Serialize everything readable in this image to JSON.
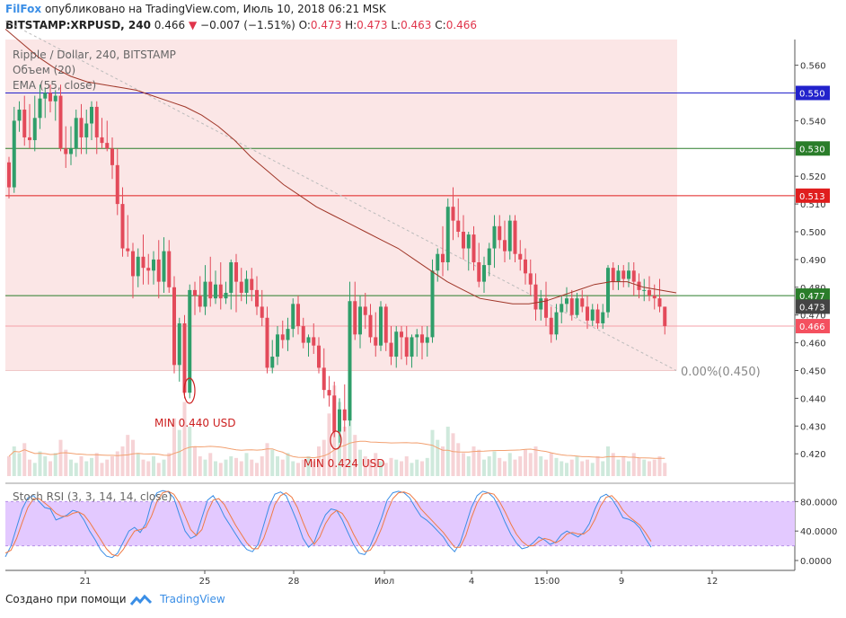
{
  "header": {
    "brand": "FilFox",
    "published": "опубликовано на TradingView.com, Июль 10, 2018 06:21 MSK",
    "symbol": "BITSTAMP:XRPUSD, 240",
    "last": "0.466",
    "arrow": "▼",
    "change": "−0.007 (−1.51%)",
    "o_label": "O:",
    "o_val": "0.473",
    "h_label": "H:",
    "h_val": "0.473",
    "l_label": "L:",
    "l_val": "0.463",
    "c_label": "C:",
    "c_val": "0.466"
  },
  "footer": {
    "created": "Создано при помощи",
    "brand": "TradingView"
  },
  "colors": {
    "up": "#2f9e6a",
    "down": "#e34a5a",
    "ema": "#a03628",
    "zone": "#fbe6e6",
    "stoch_bg": "#e3c9ff",
    "k": "#3b8ee6",
    "d": "#f07a44"
  },
  "chart_data": [
    {
      "type": "candlestick",
      "title": "Ripple / Dollar, 240, BITSTAMP",
      "legend": [
        "Объем (20)",
        "EMA (55, close)"
      ],
      "x_ticks": [
        "21",
        "25",
        "28",
        "Июл",
        "4",
        "15:00",
        "9",
        "12"
      ],
      "y_ticks": [
        "0.560",
        "0.550",
        "0.540",
        "0.530",
        "0.520",
        "0.510",
        "0.500",
        "0.490",
        "0.480",
        "0.470",
        "0.460",
        "0.450",
        "0.440",
        "0.430",
        "0.420"
      ],
      "ylim": [
        0.41,
        0.57
      ],
      "levels": [
        {
          "value": 0.55,
          "label": "0.550",
          "color": "#2222cc"
        },
        {
          "value": 0.53,
          "label": "0.530",
          "color": "#2a7d2a"
        },
        {
          "value": 0.513,
          "label": "0.513",
          "color": "#e01e1e"
        },
        {
          "value": 0.477,
          "label": "0.477",
          "color": "#2a7d2a"
        }
      ],
      "last_price": {
        "value": 0.466,
        "label": "0.466"
      },
      "ema_value": {
        "value": 0.473,
        "label": "0.473"
      },
      "fib_label": "0.00%(0.450)",
      "annotations": [
        "MIN 0.440 USD",
        "MIN 0.424 USD"
      ],
      "ohlc": [
        [
          0.525,
          0.527,
          0.512,
          0.516
        ],
        [
          0.516,
          0.545,
          0.514,
          0.54
        ],
        [
          0.54,
          0.547,
          0.536,
          0.544
        ],
        [
          0.544,
          0.549,
          0.531,
          0.534
        ],
        [
          0.534,
          0.546,
          0.53,
          0.533
        ],
        [
          0.533,
          0.549,
          0.529,
          0.541
        ],
        [
          0.541,
          0.553,
          0.537,
          0.548
        ],
        [
          0.548,
          0.552,
          0.541,
          0.55
        ],
        [
          0.55,
          0.553,
          0.543,
          0.547
        ],
        [
          0.547,
          0.551,
          0.54,
          0.549
        ],
        [
          0.549,
          0.553,
          0.529,
          0.53
        ],
        [
          0.53,
          0.538,
          0.523,
          0.528
        ],
        [
          0.528,
          0.538,
          0.524,
          0.53
        ],
        [
          0.53,
          0.544,
          0.527,
          0.541
        ],
        [
          0.541,
          0.546,
          0.528,
          0.534
        ],
        [
          0.534,
          0.544,
          0.528,
          0.539
        ],
        [
          0.539,
          0.547,
          0.533,
          0.545
        ],
        [
          0.545,
          0.547,
          0.528,
          0.534
        ],
        [
          0.534,
          0.541,
          0.53,
          0.532
        ],
        [
          0.532,
          0.54,
          0.529,
          0.53
        ],
        [
          0.53,
          0.534,
          0.519,
          0.524
        ],
        [
          0.524,
          0.53,
          0.506,
          0.51
        ],
        [
          0.51,
          0.516,
          0.491,
          0.494
        ],
        [
          0.494,
          0.506,
          0.491,
          0.493
        ],
        [
          0.493,
          0.496,
          0.476,
          0.484
        ],
        [
          0.484,
          0.494,
          0.48,
          0.491
        ],
        [
          0.491,
          0.499,
          0.481,
          0.487
        ],
        [
          0.487,
          0.492,
          0.481,
          0.486
        ],
        [
          0.486,
          0.493,
          0.481,
          0.49
        ],
        [
          0.49,
          0.497,
          0.476,
          0.482
        ],
        [
          0.482,
          0.498,
          0.478,
          0.493
        ],
        [
          0.493,
          0.497,
          0.478,
          0.48
        ],
        [
          0.48,
          0.484,
          0.449,
          0.452
        ],
        [
          0.452,
          0.469,
          0.446,
          0.467
        ],
        [
          0.467,
          0.47,
          0.44,
          0.442
        ],
        [
          0.442,
          0.481,
          0.44,
          0.479
        ],
        [
          0.479,
          0.482,
          0.47,
          0.477
        ],
        [
          0.477,
          0.484,
          0.471,
          0.473
        ],
        [
          0.473,
          0.488,
          0.47,
          0.482
        ],
        [
          0.482,
          0.491,
          0.473,
          0.476
        ],
        [
          0.476,
          0.486,
          0.474,
          0.481
        ],
        [
          0.481,
          0.489,
          0.472,
          0.476
        ],
        [
          0.476,
          0.482,
          0.474,
          0.478
        ],
        [
          0.478,
          0.49,
          0.472,
          0.489
        ],
        [
          0.489,
          0.492,
          0.471,
          0.482
        ],
        [
          0.482,
          0.487,
          0.475,
          0.478
        ],
        [
          0.478,
          0.486,
          0.474,
          0.483
        ],
        [
          0.483,
          0.487,
          0.475,
          0.479
        ],
        [
          0.479,
          0.484,
          0.47,
          0.473
        ],
        [
          0.473,
          0.479,
          0.466,
          0.469
        ],
        [
          0.469,
          0.473,
          0.449,
          0.451
        ],
        [
          0.451,
          0.461,
          0.449,
          0.455
        ],
        [
          0.455,
          0.466,
          0.452,
          0.463
        ],
        [
          0.463,
          0.468,
          0.458,
          0.461
        ],
        [
          0.461,
          0.469,
          0.457,
          0.465
        ],
        [
          0.465,
          0.476,
          0.462,
          0.474
        ],
        [
          0.474,
          0.477,
          0.463,
          0.466
        ],
        [
          0.466,
          0.469,
          0.458,
          0.46
        ],
        [
          0.46,
          0.463,
          0.455,
          0.462
        ],
        [
          0.462,
          0.467,
          0.456,
          0.459
        ],
        [
          0.459,
          0.462,
          0.449,
          0.451
        ],
        [
          0.451,
          0.458,
          0.44,
          0.443
        ],
        [
          0.443,
          0.448,
          0.437,
          0.441
        ],
        [
          0.441,
          0.446,
          0.426,
          0.428
        ],
        [
          0.428,
          0.44,
          0.424,
          0.436
        ],
        [
          0.436,
          0.445,
          0.428,
          0.432
        ],
        [
          0.432,
          0.482,
          0.43,
          0.475
        ],
        [
          0.475,
          0.482,
          0.461,
          0.463
        ],
        [
          0.463,
          0.477,
          0.458,
          0.473
        ],
        [
          0.473,
          0.478,
          0.465,
          0.47
        ],
        [
          0.47,
          0.474,
          0.46,
          0.462
        ],
        [
          0.462,
          0.471,
          0.455,
          0.459
        ],
        [
          0.459,
          0.475,
          0.457,
          0.473
        ],
        [
          0.473,
          0.474,
          0.457,
          0.46
        ],
        [
          0.46,
          0.466,
          0.452,
          0.455
        ],
        [
          0.455,
          0.466,
          0.451,
          0.464
        ],
        [
          0.464,
          0.466,
          0.454,
          0.462
        ],
        [
          0.462,
          0.466,
          0.452,
          0.455
        ],
        [
          0.455,
          0.463,
          0.451,
          0.462
        ],
        [
          0.462,
          0.465,
          0.455,
          0.463
        ],
        [
          0.463,
          0.466,
          0.454,
          0.46
        ],
        [
          0.46,
          0.466,
          0.455,
          0.462
        ],
        [
          0.462,
          0.49,
          0.46,
          0.486
        ],
        [
          0.486,
          0.494,
          0.482,
          0.492
        ],
        [
          0.492,
          0.502,
          0.484,
          0.489
        ],
        [
          0.489,
          0.512,
          0.486,
          0.509
        ],
        [
          0.509,
          0.516,
          0.497,
          0.504
        ],
        [
          0.504,
          0.512,
          0.498,
          0.5
        ],
        [
          0.5,
          0.506,
          0.49,
          0.494
        ],
        [
          0.494,
          0.5,
          0.486,
          0.499
        ],
        [
          0.499,
          0.502,
          0.486,
          0.489
        ],
        [
          0.489,
          0.496,
          0.48,
          0.482
        ],
        [
          0.482,
          0.491,
          0.478,
          0.488
        ],
        [
          0.488,
          0.496,
          0.484,
          0.494
        ],
        [
          0.494,
          0.506,
          0.487,
          0.502
        ],
        [
          0.502,
          0.506,
          0.494,
          0.497
        ],
        [
          0.497,
          0.504,
          0.489,
          0.493
        ],
        [
          0.493,
          0.506,
          0.49,
          0.504
        ],
        [
          0.504,
          0.506,
          0.489,
          0.492
        ],
        [
          0.492,
          0.497,
          0.486,
          0.49
        ],
        [
          0.49,
          0.494,
          0.481,
          0.485
        ],
        [
          0.485,
          0.49,
          0.477,
          0.481
        ],
        [
          0.481,
          0.485,
          0.468,
          0.472
        ],
        [
          0.472,
          0.479,
          0.468,
          0.476
        ],
        [
          0.476,
          0.482,
          0.466,
          0.469
        ],
        [
          0.469,
          0.473,
          0.46,
          0.463
        ],
        [
          0.463,
          0.474,
          0.461,
          0.471
        ],
        [
          0.471,
          0.477,
          0.467,
          0.474
        ],
        [
          0.474,
          0.48,
          0.471,
          0.476
        ],
        [
          0.476,
          0.479,
          0.468,
          0.47
        ],
        [
          0.47,
          0.478,
          0.469,
          0.476
        ],
        [
          0.476,
          0.479,
          0.471,
          0.473
        ],
        [
          0.473,
          0.477,
          0.465,
          0.468
        ],
        [
          0.468,
          0.474,
          0.466,
          0.472
        ],
        [
          0.472,
          0.474,
          0.465,
          0.467
        ],
        [
          0.467,
          0.474,
          0.465,
          0.471
        ],
        [
          0.471,
          0.488,
          0.469,
          0.487
        ],
        [
          0.487,
          0.489,
          0.479,
          0.482
        ],
        [
          0.482,
          0.488,
          0.479,
          0.486
        ],
        [
          0.486,
          0.488,
          0.48,
          0.483
        ],
        [
          0.483,
          0.489,
          0.48,
          0.486
        ],
        [
          0.486,
          0.489,
          0.477,
          0.482
        ],
        [
          0.482,
          0.485,
          0.476,
          0.479
        ],
        [
          0.479,
          0.483,
          0.475,
          0.479
        ],
        [
          0.479,
          0.484,
          0.475,
          0.477
        ],
        [
          0.477,
          0.481,
          0.472,
          0.476
        ],
        [
          0.476,
          0.483,
          0.471,
          0.473
        ],
        [
          0.473,
          0.473,
          0.463,
          0.466
        ]
      ],
      "ema": [
        0.573,
        0.568,
        0.563,
        0.559,
        0.556,
        0.554,
        0.553,
        0.552,
        0.551,
        0.549,
        0.547,
        0.545,
        0.542,
        0.538,
        0.533,
        0.527,
        0.522,
        0.517,
        0.513,
        0.509,
        0.506,
        0.503,
        0.5,
        0.497,
        0.494,
        0.49,
        0.486,
        0.482,
        0.479,
        0.476,
        0.475,
        0.474,
        0.474,
        0.475,
        0.477,
        0.479,
        0.481,
        0.482,
        0.482,
        0.48,
        0.479,
        0.478
      ],
      "volume": [
        12,
        18,
        14,
        20,
        10,
        8,
        15,
        12,
        9,
        14,
        22,
        16,
        10,
        8,
        12,
        9,
        11,
        14,
        8,
        10,
        12,
        15,
        18,
        25,
        22,
        14,
        10,
        9,
        12,
        8,
        10,
        14,
        35,
        28,
        45,
        30,
        18,
        12,
        10,
        14,
        9,
        8,
        10,
        12,
        11,
        9,
        14,
        10,
        8,
        12,
        20,
        16,
        12,
        10,
        14,
        9,
        8,
        10,
        12,
        9,
        18,
        22,
        38,
        55,
        45,
        30,
        42,
        25,
        16,
        12,
        10,
        14,
        9,
        8,
        11,
        10,
        9,
        12,
        8,
        10,
        9,
        11,
        28,
        22,
        18,
        30,
        26,
        20,
        14,
        12,
        18,
        16,
        10,
        12,
        15,
        11,
        9,
        14,
        10,
        12,
        16,
        14,
        18,
        12,
        10,
        14,
        11,
        9,
        8,
        10,
        12,
        9,
        10,
        8,
        12,
        9,
        18,
        14,
        10,
        12,
        9,
        14,
        11,
        10,
        9,
        10,
        12,
        8
      ],
      "volume_ma_label": "Объем (20)"
    },
    {
      "type": "line",
      "title": "Stoch RSI (3, 3, 14, 14, close)",
      "y_ticks": [
        "80.0000",
        "40.0000",
        "0.0000"
      ],
      "ylim": [
        -5,
        105
      ],
      "band": [
        20,
        80
      ],
      "series": [
        {
          "name": "K",
          "values": [
            5,
            20,
            45,
            70,
            85,
            88,
            80,
            72,
            70,
            55,
            58,
            62,
            68,
            66,
            55,
            40,
            28,
            14,
            6,
            4,
            10,
            25,
            40,
            45,
            38,
            50,
            78,
            92,
            95,
            93,
            85,
            62,
            40,
            30,
            34,
            58,
            82,
            88,
            76,
            60,
            48,
            36,
            24,
            15,
            12,
            22,
            48,
            74,
            90,
            93,
            88,
            70,
            52,
            30,
            18,
            25,
            45,
            62,
            70,
            68,
            55,
            38,
            22,
            10,
            8,
            20,
            38,
            58,
            82,
            92,
            94,
            92,
            85,
            72,
            60,
            55,
            48,
            40,
            32,
            20,
            12,
            24,
            48,
            72,
            88,
            94,
            92,
            85,
            70,
            52,
            36,
            24,
            16,
            18,
            24,
            32,
            28,
            22,
            25,
            35,
            40,
            36,
            32,
            38,
            50,
            70,
            86,
            90,
            84,
            72,
            58,
            56,
            52,
            44,
            30,
            18
          ]
        },
        {
          "name": "D",
          "values": [
            10,
            14,
            30,
            52,
            72,
            84,
            84,
            78,
            72,
            64,
            60,
            60,
            64,
            66,
            62,
            52,
            40,
            28,
            16,
            8,
            6,
            15,
            28,
            40,
            42,
            45,
            60,
            80,
            92,
            94,
            90,
            78,
            60,
            42,
            34,
            42,
            66,
            82,
            84,
            76,
            62,
            48,
            36,
            24,
            16,
            16,
            30,
            52,
            76,
            88,
            92,
            86,
            72,
            52,
            34,
            22,
            32,
            50,
            62,
            68,
            64,
            52,
            36,
            22,
            12,
            14,
            26,
            44,
            66,
            84,
            92,
            93,
            90,
            82,
            70,
            62,
            54,
            46,
            38,
            28,
            18,
            18,
            34,
            58,
            78,
            90,
            92,
            90,
            80,
            66,
            50,
            36,
            26,
            20,
            20,
            26,
            30,
            28,
            24,
            28,
            36,
            38,
            36,
            36,
            42,
            56,
            74,
            86,
            88,
            80,
            68,
            60,
            54,
            48,
            38,
            26
          ]
        }
      ]
    }
  ]
}
